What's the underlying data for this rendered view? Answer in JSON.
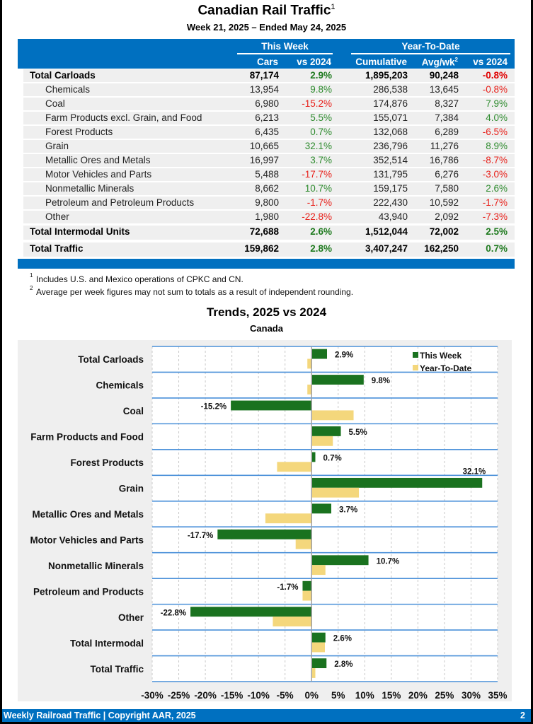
{
  "header": {
    "title": "Canadian Rail Traffic",
    "title_sup": "1",
    "subtitle": "Week 21, 2025 – Ended May 24, 2025"
  },
  "table": {
    "group_this_week": "This Week",
    "group_ytd": "Year-To-Date",
    "columns": {
      "cars": "Cars",
      "vs_week": "vs 2024",
      "cumulative": "Cumulative",
      "avg": "Avg/wk",
      "avg_sup": "2",
      "vs_ytd": "vs 2024"
    },
    "rows": [
      {
        "label": "Total Carloads",
        "bold": true,
        "cars": "87,174",
        "vs_week": "2.9%",
        "cumulative": "1,895,203",
        "avg": "90,248",
        "vs_ytd": "-0.8%"
      },
      {
        "label": "Chemicals",
        "bold": false,
        "cars": "13,954",
        "vs_week": "9.8%",
        "cumulative": "286,538",
        "avg": "13,645",
        "vs_ytd": "-0.8%"
      },
      {
        "label": "Coal",
        "bold": false,
        "cars": "6,980",
        "vs_week": "-15.2%",
        "cumulative": "174,876",
        "avg": "8,327",
        "vs_ytd": "7.9%"
      },
      {
        "label": "Farm Products excl. Grain, and Food",
        "bold": false,
        "cars": "6,213",
        "vs_week": "5.5%",
        "cumulative": "155,071",
        "avg": "7,384",
        "vs_ytd": "4.0%"
      },
      {
        "label": "Forest Products",
        "bold": false,
        "cars": "6,435",
        "vs_week": "0.7%",
        "cumulative": "132,068",
        "avg": "6,289",
        "vs_ytd": "-6.5%"
      },
      {
        "label": "Grain",
        "bold": false,
        "cars": "10,665",
        "vs_week": "32.1%",
        "cumulative": "236,796",
        "avg": "11,276",
        "vs_ytd": "8.9%"
      },
      {
        "label": "Metallic Ores and Metals",
        "bold": false,
        "cars": "16,997",
        "vs_week": "3.7%",
        "cumulative": "352,514",
        "avg": "16,786",
        "vs_ytd": "-8.7%"
      },
      {
        "label": "Motor Vehicles and Parts",
        "bold": false,
        "cars": "5,488",
        "vs_week": "-17.7%",
        "cumulative": "131,795",
        "avg": "6,276",
        "vs_ytd": "-3.0%"
      },
      {
        "label": "Nonmetallic Minerals",
        "bold": false,
        "cars": "8,662",
        "vs_week": "10.7%",
        "cumulative": "159,175",
        "avg": "7,580",
        "vs_ytd": "2.6%"
      },
      {
        "label": "Petroleum and Petroleum Products",
        "bold": false,
        "cars": "9,800",
        "vs_week": "-1.7%",
        "cumulative": "222,430",
        "avg": "10,592",
        "vs_ytd": "-1.7%"
      },
      {
        "label": "Other",
        "bold": false,
        "cars": "1,980",
        "vs_week": "-22.8%",
        "cumulative": "43,940",
        "avg": "2,092",
        "vs_ytd": "-7.3%"
      },
      {
        "label": "Total Intermodal Units",
        "bold": true,
        "cars": "72,688",
        "vs_week": "2.6%",
        "cumulative": "1,512,044",
        "avg": "72,002",
        "vs_ytd": "2.5%"
      },
      {
        "label": "Total Traffic",
        "bold": true,
        "cars": "159,862",
        "vs_week": "2.8%",
        "cumulative": "3,407,247",
        "avg": "162,250",
        "vs_ytd": "0.7%"
      }
    ]
  },
  "footnotes": [
    {
      "mark": "1",
      "text": "Includes U.S. and Mexico operations of CPKC and CN."
    },
    {
      "mark": "2",
      "text": "Average per week figures may not sum to totals as a result of independent rounding."
    }
  ],
  "colors": {
    "brand_blue": "#0070c0",
    "this_week": "#1a721f",
    "ytd": "#f4d77c",
    "positive": "#2e8b2e",
    "negative": "#e8201a"
  },
  "chart_data": {
    "type": "bar",
    "orientation": "horizontal",
    "title": "Trends, 2025 vs 2024",
    "subtitle": "Canada",
    "categories": [
      "Total Carloads",
      "Chemicals",
      "Coal",
      "Farm Products and Food",
      "Forest Products",
      "Grain",
      "Metallic Ores and Metals",
      "Motor Vehicles and Parts",
      "Nonmetallic Minerals",
      "Petroleum and Products",
      "Other",
      "Total Intermodal",
      "Total Traffic"
    ],
    "series": [
      {
        "name": "This Week",
        "values": [
          2.9,
          9.8,
          -15.2,
          5.5,
          0.7,
          32.1,
          3.7,
          -17.7,
          10.7,
          -1.7,
          -22.8,
          2.6,
          2.8
        ],
        "labels": [
          "2.9%",
          "9.8%",
          "-15.2%",
          "5.5%",
          "0.7%",
          "32.1%",
          "3.7%",
          "-17.7%",
          "10.7%",
          "-1.7%",
          "-22.8%",
          "2.6%",
          "2.8%"
        ]
      },
      {
        "name": "Year-To-Date",
        "values": [
          -0.8,
          -0.8,
          7.9,
          4.0,
          -6.5,
          8.9,
          -8.7,
          -3.0,
          2.6,
          -1.7,
          -7.3,
          2.5,
          0.7
        ]
      }
    ],
    "xlim": [
      -30,
      35
    ],
    "xticks": [
      -30,
      -25,
      -20,
      -15,
      -10,
      -5,
      0,
      5,
      10,
      15,
      20,
      25,
      30,
      35
    ],
    "xtick_labels": [
      "-30%",
      "-25%",
      "-20%",
      "-15%",
      "-10%",
      "-5%",
      "0%",
      "5%",
      "10%",
      "15%",
      "20%",
      "25%",
      "30%",
      "35%"
    ],
    "xlabel": "",
    "ylabel": "",
    "grid": true,
    "legend": "top-right"
  },
  "footer": {
    "left": "Weekly Railroad Traffic | Copyright AAR, 2025",
    "page": "2"
  }
}
